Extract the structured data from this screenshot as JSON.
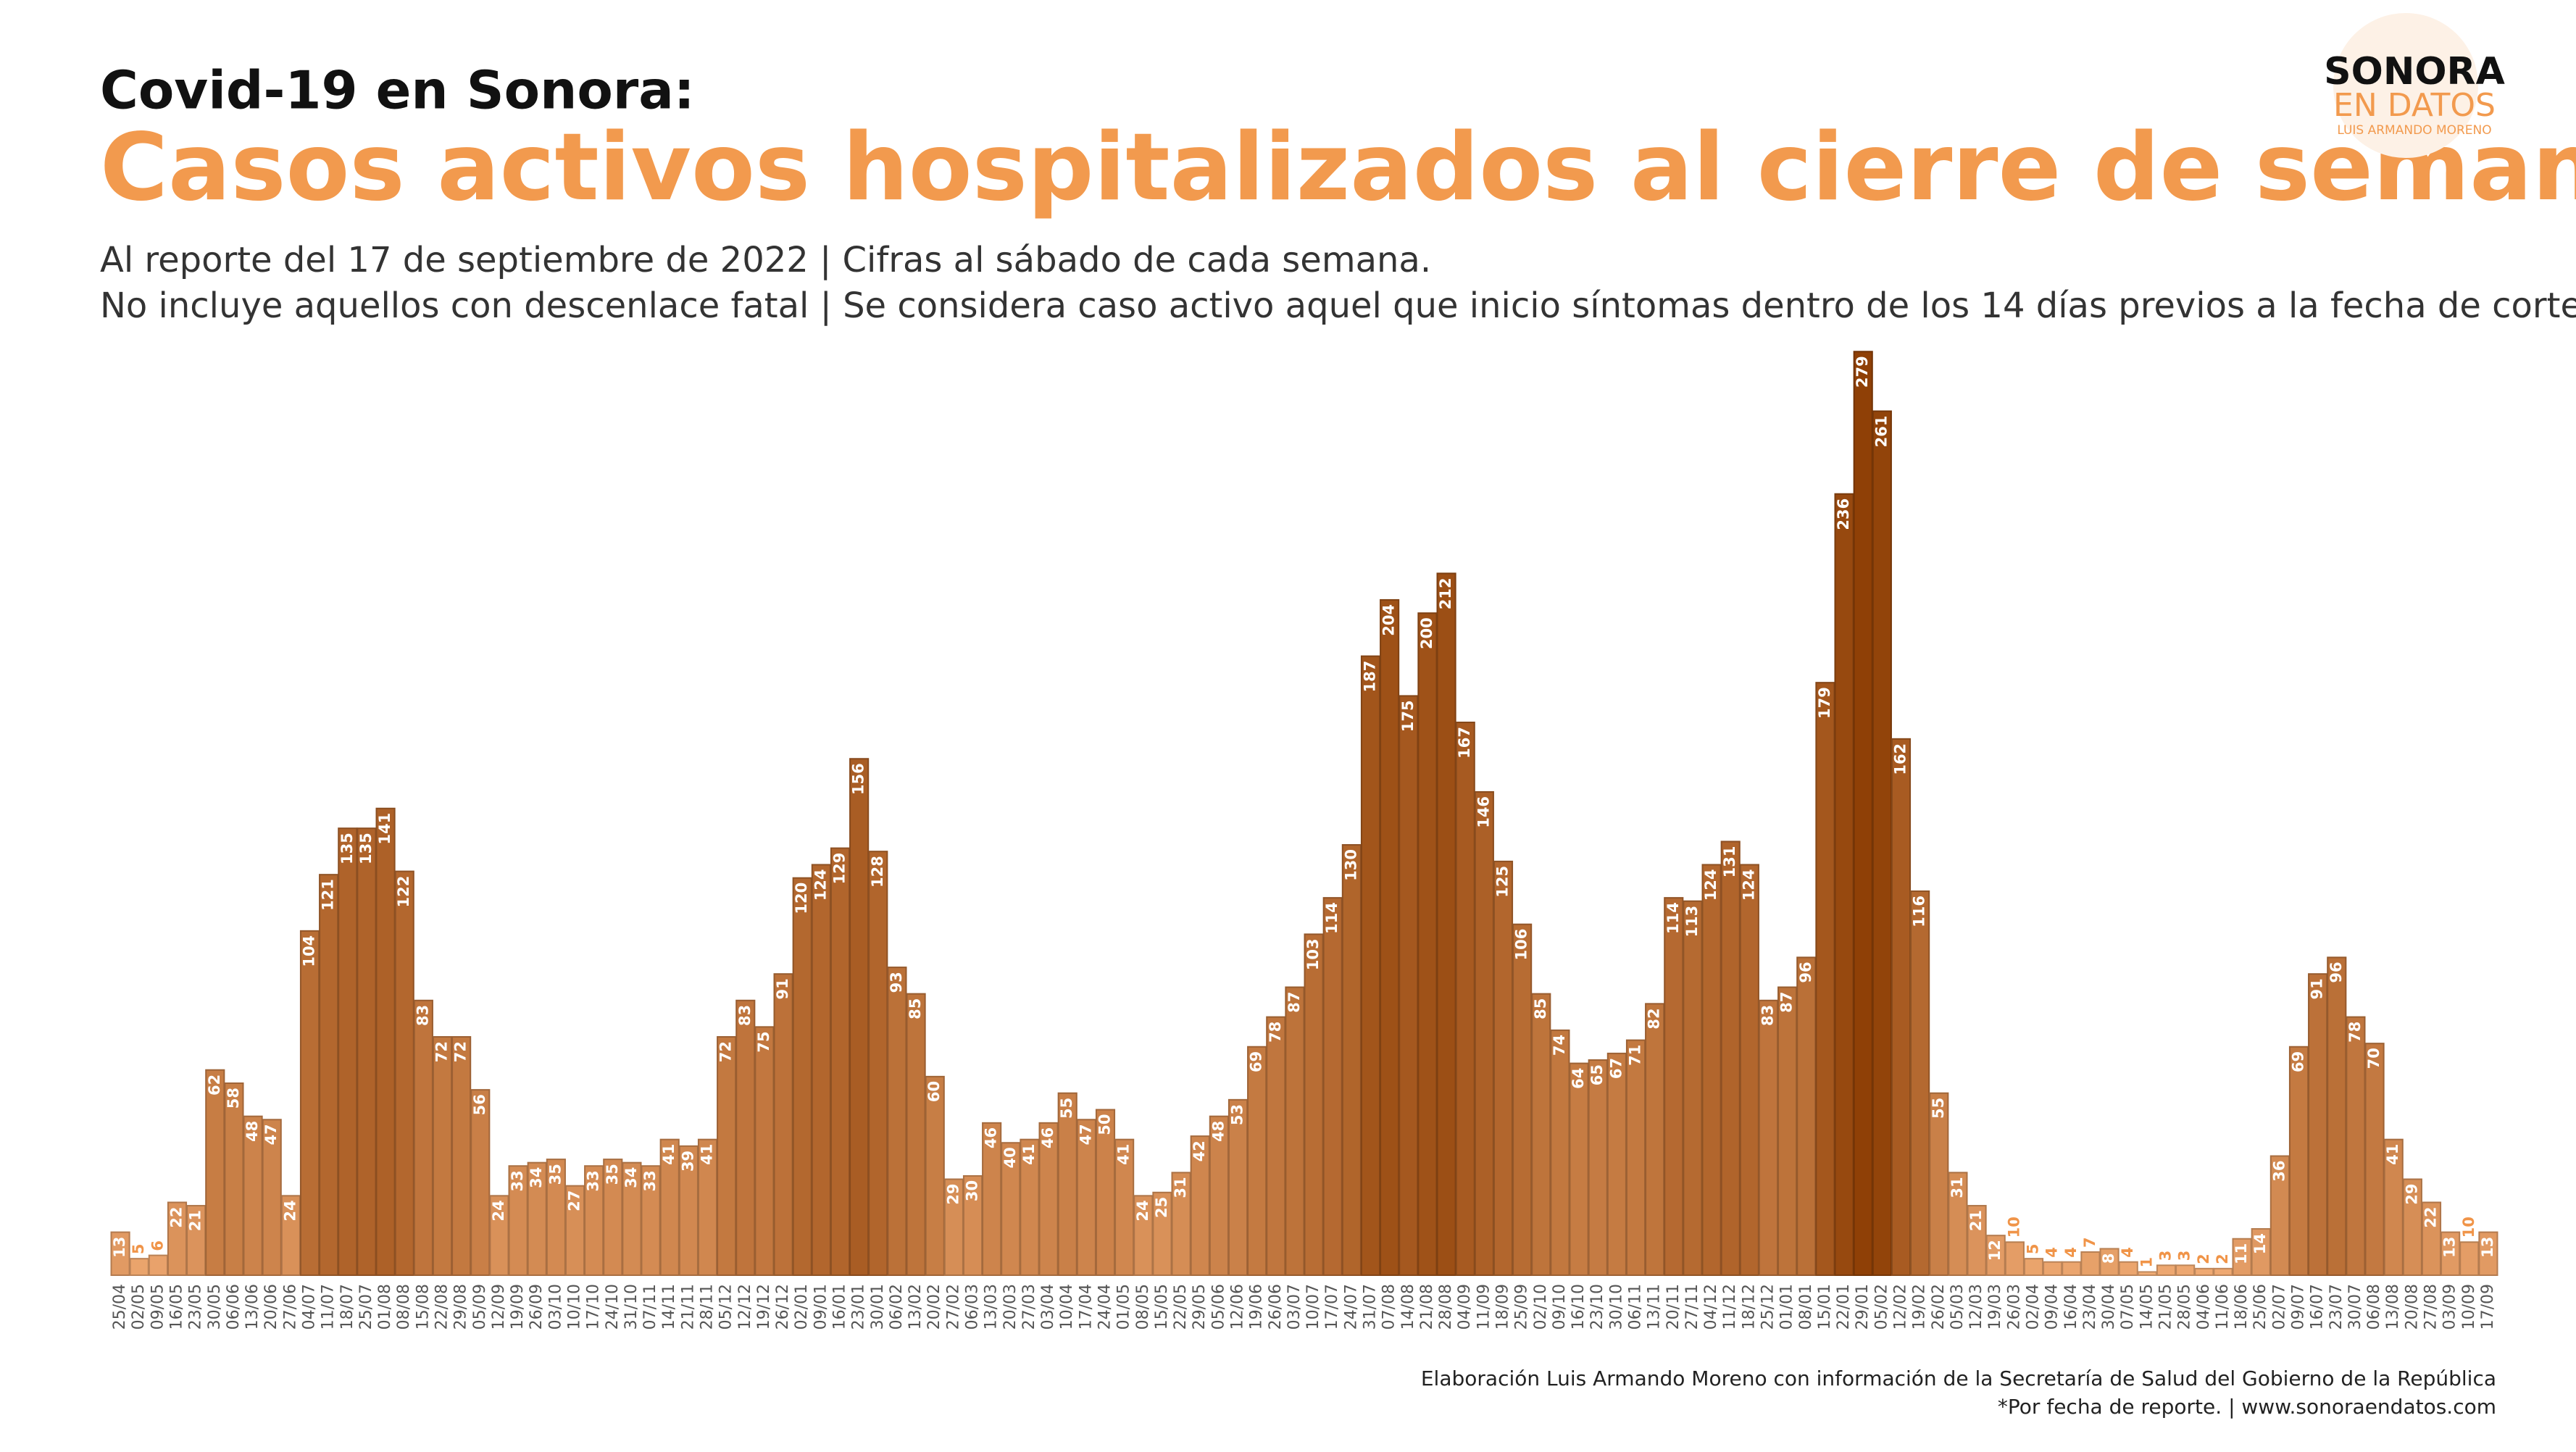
{
  "header": {
    "logo": {
      "name": "SONORA",
      "sub": "EN DATOS",
      "author": "LUIS ARMANDO MORENO"
    }
  },
  "chart_data": {
    "type": "bar",
    "title": "Covid-19  en Sonora:",
    "subtitle": "Casos activos hospitalizados al cierre de semana",
    "notes": [
      "Al reporte del 17 de septiembre de 2022  | Cifras al sábado de cada semana.",
      "No incluye aquellos con descenlace fatal | Se considera caso activo aquel que inicio síntomas dentro de los 14 días previos a la fecha de corte."
    ],
    "source": [
      "Elaboración Luis Armando Moreno con información de la Secretaría de Salud del Gobierno de la República",
      "*Por fecha de reporte. | www.sonoraendatos.com"
    ],
    "categories": [
      "25/04",
      "02/05",
      "09/05",
      "16/05",
      "23/05",
      "30/05",
      "06/06",
      "13/06",
      "20/06",
      "27/06",
      "04/07",
      "11/07",
      "18/07",
      "25/07",
      "01/08",
      "08/08",
      "15/08",
      "22/08",
      "29/08",
      "05/09",
      "12/09",
      "19/09",
      "26/09",
      "03/10",
      "10/10",
      "17/10",
      "24/10",
      "31/10",
      "07/11",
      "14/11",
      "21/11",
      "28/11",
      "05/12",
      "12/12",
      "19/12",
      "26/12",
      "02/01",
      "09/01",
      "16/01",
      "23/01",
      "30/01",
      "06/02",
      "13/02",
      "20/02",
      "27/02",
      "06/03",
      "13/03",
      "20/03",
      "27/03",
      "03/04",
      "10/04",
      "17/04",
      "24/04",
      "01/05",
      "08/05",
      "15/05",
      "22/05",
      "29/05",
      "05/06",
      "12/06",
      "19/06",
      "26/06",
      "03/07",
      "10/07",
      "17/07",
      "24/07",
      "31/07",
      "07/08",
      "14/08",
      "21/08",
      "28/08",
      "04/09",
      "11/09",
      "18/09",
      "25/09",
      "02/10",
      "09/10",
      "16/10",
      "23/10",
      "30/10",
      "06/11",
      "13/11",
      "20/11",
      "27/11",
      "04/12",
      "11/12",
      "18/12",
      "25/12",
      "01/01",
      "08/01",
      "15/01",
      "22/01",
      "29/01",
      "05/02",
      "12/02",
      "19/02",
      "26/02",
      "05/03",
      "12/03",
      "19/03",
      "26/03",
      "02/04",
      "09/04",
      "16/04",
      "23/04",
      "30/04",
      "07/05",
      "14/05",
      "21/05",
      "28/05",
      "04/06",
      "11/06",
      "18/06",
      "25/06",
      "02/07",
      "09/07",
      "16/07",
      "23/07",
      "30/07",
      "06/08",
      "13/08",
      "20/08",
      "27/08",
      "03/09",
      "10/09",
      "17/09"
    ],
    "values": [
      13,
      5,
      6,
      22,
      21,
      62,
      58,
      48,
      47,
      24,
      104,
      121,
      135,
      135,
      141,
      122,
      83,
      72,
      72,
      56,
      24,
      33,
      34,
      35,
      27,
      33,
      35,
      34,
      33,
      41,
      39,
      41,
      72,
      83,
      75,
      91,
      120,
      124,
      129,
      156,
      128,
      93,
      85,
      60,
      29,
      30,
      46,
      40,
      41,
      46,
      55,
      47,
      50,
      41,
      24,
      25,
      31,
      42,
      48,
      53,
      69,
      78,
      87,
      103,
      114,
      130,
      187,
      204,
      175,
      200,
      212,
      167,
      146,
      125,
      106,
      85,
      74,
      64,
      65,
      67,
      71,
      82,
      114,
      113,
      124,
      131,
      124,
      83,
      87,
      96,
      179,
      236,
      279,
      261,
      162,
      116,
      55,
      31,
      21,
      12,
      10,
      5,
      4,
      4,
      7,
      8,
      4,
      1,
      3,
      3,
      2,
      2,
      11,
      14,
      36,
      69,
      91,
      96,
      78,
      70,
      41,
      29,
      22,
      13,
      10,
      13
    ],
    "ylim": [
      0,
      290
    ],
    "color_scale": [
      "#f8b37c",
      "#8f4006"
    ],
    "label_color": "#f09448"
  }
}
